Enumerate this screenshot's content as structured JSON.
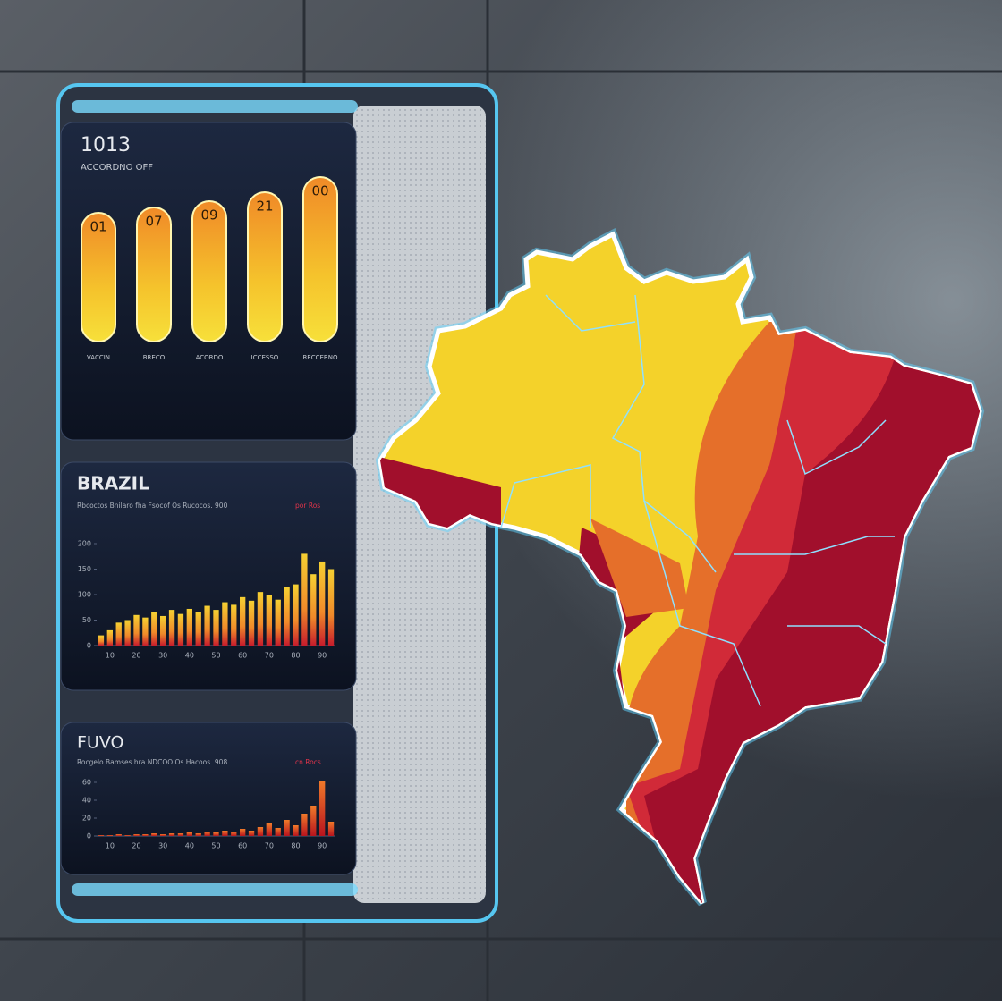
{
  "panel_top": {
    "title": "1013",
    "subtitle": "ACCORDNO OFF",
    "gauge_labels": [
      "01",
      "07",
      "09",
      "21",
      "00"
    ],
    "column_labels": [
      "VACCIN",
      "BRECO",
      "ACORDO",
      "ICCESSO",
      "RECCERNO"
    ]
  },
  "chart_data": [
    {
      "type": "bar",
      "title": "BRAZIL",
      "subtitle": "Rbcoctos Bnilaro fha Fsocof Os Rucocos. 900",
      "subtitle_highlight": "por Ros",
      "categories": [
        null,
        "10",
        null,
        null,
        "20",
        null,
        null,
        "30",
        null,
        null,
        "40",
        null,
        null,
        "50",
        null,
        null,
        "60",
        null,
        null,
        "70",
        null,
        null,
        "80",
        null,
        null,
        "90",
        null
      ],
      "values": [
        20,
        30,
        45,
        50,
        60,
        55,
        65,
        58,
        70,
        62,
        72,
        66,
        78,
        70,
        85,
        80,
        95,
        88,
        105,
        100,
        90,
        115,
        120,
        180,
        140,
        165,
        150
      ],
      "ylim": [
        0,
        200
      ],
      "yticks": [
        0,
        50,
        100,
        150,
        200
      ]
    },
    {
      "type": "bar",
      "title": "FUVO",
      "subtitle": "Rocgelo Bamses hra NDCOO Os Hacoos. 908",
      "subtitle_highlight": "cn Rocs",
      "categories": [
        null,
        "10",
        null,
        null,
        "20",
        null,
        null,
        "30",
        null,
        null,
        "40",
        null,
        null,
        "50",
        null,
        null,
        "60",
        null,
        null,
        "70",
        null,
        null,
        "80",
        null,
        null,
        "90",
        null
      ],
      "values": [
        1,
        1,
        2,
        1,
        2,
        2,
        3,
        2,
        3,
        3,
        4,
        3,
        5,
        4,
        6,
        5,
        8,
        6,
        10,
        14,
        9,
        18,
        12,
        25,
        34,
        62,
        16
      ],
      "ylim": [
        0,
        70
      ],
      "yticks": [
        0,
        20,
        40,
        60
      ]
    }
  ]
}
